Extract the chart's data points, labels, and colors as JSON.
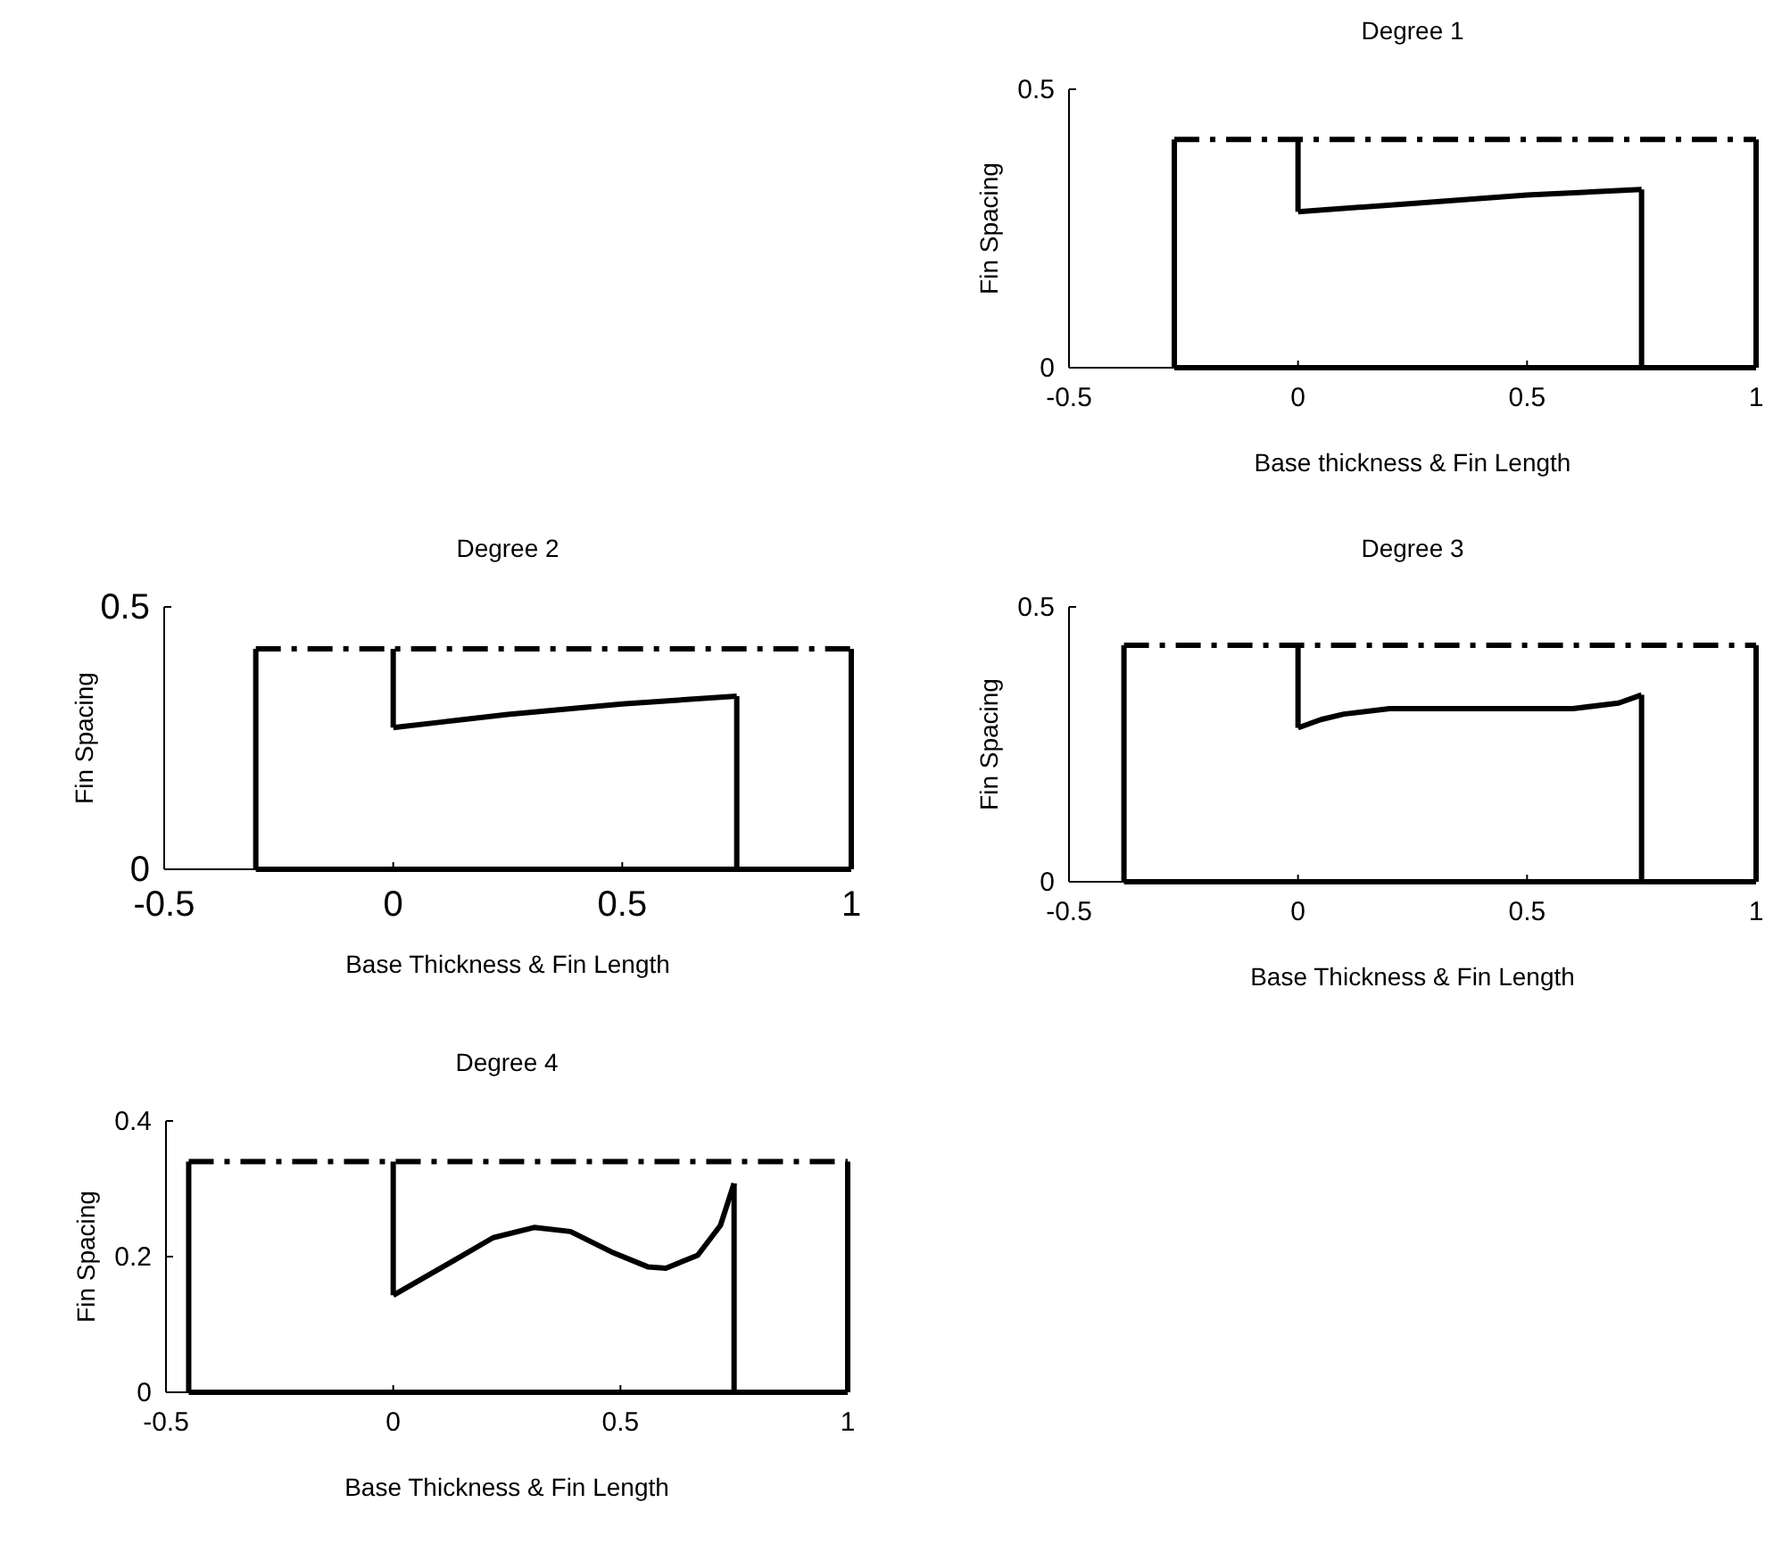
{
  "chart_data": [
    {
      "type": "line",
      "title": "Degree 1",
      "xlabel": "Base thickness & Fin Length",
      "ylabel": "Fin Spacing",
      "xlim": [
        -0.5,
        1
      ],
      "xticks": [
        -0.5,
        0,
        0.5,
        1
      ],
      "ylim": [
        0,
        0.5
      ],
      "yticks": [
        0,
        0.5
      ],
      "grid": false,
      "legend": false,
      "series": [
        {
          "color": "#000000",
          "line_style": "solid",
          "x": [
            -0.27,
            1
          ],
          "values": [
            0,
            0
          ]
        },
        {
          "color": "#000000",
          "line_style": "solid",
          "x": [
            -0.27,
            -0.27
          ],
          "values": [
            0,
            0.41
          ]
        },
        {
          "color": "#000000",
          "line_style": "solid",
          "x": [
            1,
            1
          ],
          "values": [
            0,
            0.41
          ]
        },
        {
          "color": "#000000",
          "line_style": "dashed",
          "x": [
            -0.27,
            1
          ],
          "values": [
            0.41,
            0.41
          ]
        },
        {
          "color": "#000000",
          "line_style": "solid",
          "x": [
            0,
            0
          ],
          "values": [
            0.28,
            0.41
          ]
        },
        {
          "color": "#000000",
          "line_style": "solid",
          "x": [
            0,
            0.25,
            0.5,
            0.75
          ],
          "values": [
            0.28,
            0.295,
            0.31,
            0.32
          ]
        },
        {
          "color": "#000000",
          "line_style": "solid",
          "x": [
            0.75,
            0.75
          ],
          "values": [
            0,
            0.32
          ]
        }
      ]
    },
    {
      "type": "line",
      "title": "Degree 2",
      "xlabel": "Base Thickness & Fin Length",
      "ylabel": "Fin Spacing",
      "xlim": [
        -0.5,
        1
      ],
      "xticks": [
        -0.5,
        0,
        0.5,
        1
      ],
      "ylim": [
        0,
        0.5
      ],
      "yticks": [
        0,
        0.5
      ],
      "grid": false,
      "legend": false,
      "series": [
        {
          "color": "#000000",
          "line_style": "solid",
          "x": [
            -0.3,
            1
          ],
          "values": [
            0,
            0
          ]
        },
        {
          "color": "#000000",
          "line_style": "solid",
          "x": [
            -0.3,
            -0.3
          ],
          "values": [
            0,
            0.42
          ]
        },
        {
          "color": "#000000",
          "line_style": "solid",
          "x": [
            1,
            1
          ],
          "values": [
            0,
            0.42
          ]
        },
        {
          "color": "#000000",
          "line_style": "dashed",
          "x": [
            -0.3,
            1
          ],
          "values": [
            0.42,
            0.42
          ]
        },
        {
          "color": "#000000",
          "line_style": "solid",
          "x": [
            0,
            0
          ],
          "values": [
            0.27,
            0.42
          ]
        },
        {
          "color": "#000000",
          "line_style": "solid",
          "x": [
            0,
            0.1,
            0.25,
            0.5,
            0.75
          ],
          "values": [
            0.27,
            0.28,
            0.295,
            0.315,
            0.33
          ]
        },
        {
          "color": "#000000",
          "line_style": "solid",
          "x": [
            0.75,
            0.75
          ],
          "values": [
            0,
            0.33
          ]
        }
      ]
    },
    {
      "type": "line",
      "title": "Degree 3",
      "xlabel": "Base Thickness & Fin Length",
      "ylabel": "Fin Spacing",
      "xlim": [
        -0.5,
        1
      ],
      "xticks": [
        -0.5,
        0,
        0.5,
        1
      ],
      "ylim": [
        0,
        0.5
      ],
      "yticks": [
        0,
        0.5
      ],
      "grid": false,
      "legend": false,
      "series": [
        {
          "color": "#000000",
          "line_style": "solid",
          "x": [
            -0.38,
            1
          ],
          "values": [
            0,
            0
          ]
        },
        {
          "color": "#000000",
          "line_style": "solid",
          "x": [
            -0.38,
            -0.38
          ],
          "values": [
            0,
            0.43
          ]
        },
        {
          "color": "#000000",
          "line_style": "solid",
          "x": [
            1,
            1
          ],
          "values": [
            0,
            0.43
          ]
        },
        {
          "color": "#000000",
          "line_style": "dashed",
          "x": [
            -0.38,
            1
          ],
          "values": [
            0.43,
            0.43
          ]
        },
        {
          "color": "#000000",
          "line_style": "solid",
          "x": [
            0,
            0
          ],
          "values": [
            0.28,
            0.43
          ]
        },
        {
          "color": "#000000",
          "line_style": "solid",
          "x": [
            0,
            0.05,
            0.1,
            0.2,
            0.4,
            0.6,
            0.7,
            0.75
          ],
          "values": [
            0.28,
            0.295,
            0.305,
            0.315,
            0.315,
            0.315,
            0.325,
            0.34
          ]
        },
        {
          "color": "#000000",
          "line_style": "solid",
          "x": [
            0.75,
            0.75
          ],
          "values": [
            0,
            0.34
          ]
        }
      ]
    },
    {
      "type": "line",
      "title": "Degree 4",
      "xlabel": "Base Thickness & Fin Length",
      "ylabel": "Fin Spacing",
      "xlim": [
        -0.5,
        1
      ],
      "xticks": [
        -0.5,
        0,
        0.5,
        1
      ],
      "ylim": [
        0,
        0.4
      ],
      "yticks": [
        0,
        0.2,
        0.4
      ],
      "grid": false,
      "legend": false,
      "series": [
        {
          "color": "#000000",
          "line_style": "solid",
          "x": [
            -0.45,
            1
          ],
          "values": [
            0,
            0
          ]
        },
        {
          "color": "#000000",
          "line_style": "solid",
          "x": [
            -0.45,
            -0.45
          ],
          "values": [
            0,
            0.34
          ]
        },
        {
          "color": "#000000",
          "line_style": "solid",
          "x": [
            1,
            1
          ],
          "values": [
            0,
            0.34
          ]
        },
        {
          "color": "#000000",
          "line_style": "dashed",
          "x": [
            -0.45,
            1
          ],
          "values": [
            0.34,
            0.34
          ]
        },
        {
          "color": "#000000",
          "line_style": "solid",
          "x": [
            0,
            0
          ],
          "values": [
            0.143,
            0.34
          ]
        },
        {
          "color": "#000000",
          "line_style": "solid",
          "x": [
            0,
            0.13,
            0.22,
            0.31,
            0.39,
            0.48,
            0.56,
            0.6,
            0.67,
            0.72,
            0.75
          ],
          "values": [
            0.143,
            0.193,
            0.228,
            0.243,
            0.237,
            0.207,
            0.185,
            0.183,
            0.202,
            0.246,
            0.308
          ]
        },
        {
          "color": "#000000",
          "line_style": "solid",
          "x": [
            0.75,
            0.75
          ],
          "values": [
            0,
            0.308
          ]
        }
      ]
    }
  ]
}
